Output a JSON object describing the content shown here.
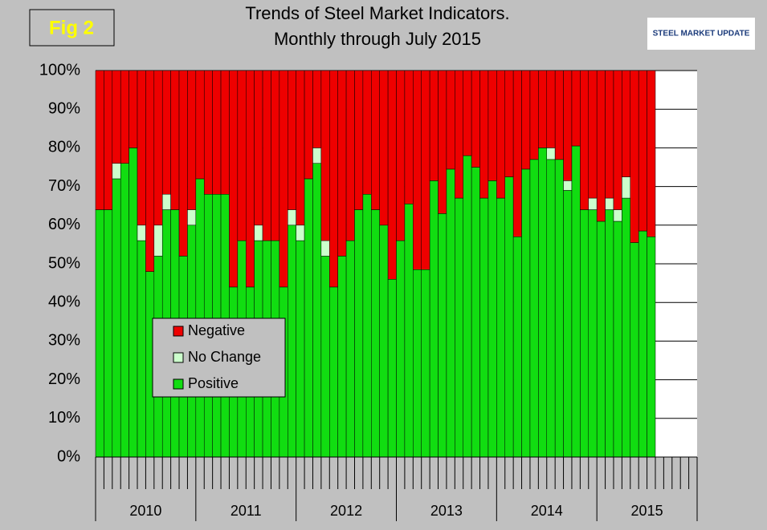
{
  "chart_data": {
    "type": "stacked_bar",
    "badge": "Fig 2",
    "logo": "STEEL MARKET UPDATE",
    "title": "Trends of Steel Market Indicators.",
    "subtitle": "Monthly through July 2015",
    "categories": [
      null,
      null,
      null,
      null,
      null,
      null,
      null,
      null,
      null,
      null,
      null,
      null,
      null,
      null,
      null,
      null,
      null,
      null,
      null,
      null,
      null,
      null,
      null,
      null,
      null,
      null,
      null,
      null,
      null,
      null,
      null,
      null,
      null,
      null,
      null,
      null,
      null,
      null,
      null,
      null,
      null,
      null,
      null,
      null,
      null,
      null,
      null,
      null,
      null,
      null,
      null,
      null,
      null,
      null,
      null,
      null,
      null,
      null,
      null,
      null,
      null,
      null,
      null,
      null,
      null,
      null,
      null,
      null,
      null,
      null,
      null,
      null
    ],
    "year_labels": [
      "2010",
      "2011",
      "2012",
      "2013",
      "2014",
      "2015"
    ],
    "series": [
      {
        "name": "Positive",
        "color": "#11dd11",
        "values": [
          64,
          64,
          72,
          76,
          80,
          56,
          48,
          52,
          64,
          64,
          52,
          60,
          72,
          68,
          68,
          68,
          44,
          56,
          44,
          56,
          56,
          56,
          44,
          60,
          56,
          72,
          76,
          52,
          44,
          52,
          56,
          64,
          68,
          64,
          60,
          46,
          56,
          65.5,
          48.5,
          48.5,
          71.5,
          63,
          74.5,
          67,
          78,
          75,
          67,
          71.5,
          67,
          72.5,
          57,
          74.5,
          77,
          80,
          77,
          77,
          69,
          80.5,
          64,
          64,
          61,
          64,
          61,
          67,
          55.5,
          58.5,
          57,
          null,
          null,
          null,
          null,
          null
        ]
      },
      {
        "name": "No Change",
        "color": "#ccffcc",
        "values": [
          0,
          0,
          4,
          0,
          0,
          4,
          0,
          8,
          4,
          0,
          0,
          4,
          0,
          0,
          0,
          0,
          0,
          0,
          0,
          4,
          0,
          0,
          0,
          4,
          4,
          0,
          4,
          4,
          0,
          0,
          0,
          0,
          0,
          0,
          0,
          0,
          0,
          0,
          0,
          0,
          0,
          0,
          0,
          0,
          0,
          0,
          0,
          0,
          0,
          0,
          0,
          0,
          0,
          0,
          3,
          0,
          2.5,
          0,
          0,
          3,
          0,
          3,
          3,
          5.5,
          0,
          0,
          0,
          null,
          null,
          null,
          null,
          null
        ]
      },
      {
        "name": "Negative",
        "color": "#ee0000",
        "values": [
          36,
          36,
          24,
          24,
          20,
          40,
          52,
          40,
          32,
          36,
          48,
          36,
          28,
          32,
          32,
          32,
          56,
          44,
          56,
          40,
          44,
          44,
          56,
          36,
          40,
          28,
          20,
          44,
          56,
          48,
          44,
          36,
          32,
          36,
          40,
          54,
          44,
          34.5,
          51.5,
          51.5,
          28.5,
          37,
          25.5,
          33,
          22,
          25,
          33,
          28.5,
          33,
          27.5,
          43,
          25.5,
          23,
          20,
          20,
          23,
          28.5,
          19.5,
          36,
          33,
          39,
          33,
          36,
          27.5,
          44.5,
          41.5,
          43,
          null,
          null,
          null,
          null,
          null
        ]
      }
    ],
    "ylim": [
      0,
      100
    ],
    "yticks": [
      {
        "value": 0,
        "label": "0%"
      },
      {
        "value": 10,
        "label": "10%"
      },
      {
        "value": 20,
        "label": "20%"
      },
      {
        "value": 30,
        "label": "30%"
      },
      {
        "value": 40,
        "label": "40%"
      },
      {
        "value": 50,
        "label": "50%"
      },
      {
        "value": 60,
        "label": "60%"
      },
      {
        "value": 70,
        "label": "70%"
      },
      {
        "value": 80,
        "label": "80%"
      },
      {
        "value": 90,
        "label": "90%"
      },
      {
        "value": 100,
        "label": "100%"
      }
    ],
    "grid": true,
    "legend_position": "left"
  }
}
